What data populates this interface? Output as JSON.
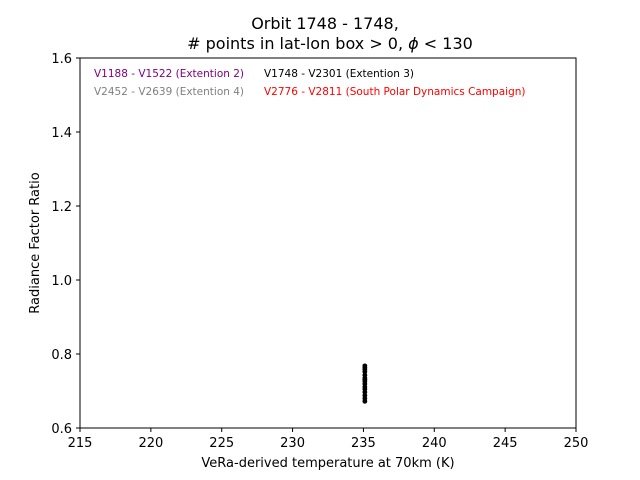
{
  "chart_data": {
    "type": "scatter",
    "title_line1": "Orbit 1748 - 1748,",
    "title_line2_prefix": "# points in lat-lon box > 0, ",
    "title_line2_symbol": "ϕ",
    "title_line2_suffix": " < 130",
    "xlabel": "VeRa-derived temperature at 70km (K)",
    "ylabel": "Radiance Factor Ratio",
    "xlim": [
      215,
      250
    ],
    "ylim": [
      0.6,
      1.6
    ],
    "xticks": [
      215,
      220,
      225,
      230,
      235,
      240,
      245,
      250
    ],
    "yticks": [
      0.6,
      0.8,
      1.0,
      1.2,
      1.4,
      1.6
    ],
    "ytick_labels": [
      "0.6",
      "0.8",
      "1.0",
      "1.2",
      "1.4",
      "1.6"
    ],
    "grid": false,
    "legend_text": [
      {
        "label": "V1188 - V1522 (Extention 2)",
        "color": "#800080"
      },
      {
        "label": "V1748 - V2301 (Extention 3)",
        "color": "#000000"
      },
      {
        "label": "V2452 - V2639 (Extention 4)",
        "color": "#808080"
      },
      {
        "label": "V2776 - V2811 (South Polar Dynamics Campaign)",
        "color": "#ff0000"
      }
    ],
    "series": [
      {
        "name": "V1748 - V2301 (Extention 3)",
        "color": "#000000",
        "x": [
          235.1,
          235.1,
          235.1,
          235.1,
          235.1,
          235.1,
          235.1,
          235.1,
          235.1,
          235.1,
          235.1,
          235.1,
          235.1,
          235.1,
          235.1
        ],
        "y": [
          0.672,
          0.68,
          0.688,
          0.697,
          0.705,
          0.711,
          0.719,
          0.726,
          0.731,
          0.735,
          0.743,
          0.752,
          0.758,
          0.763,
          0.768
        ]
      }
    ]
  }
}
